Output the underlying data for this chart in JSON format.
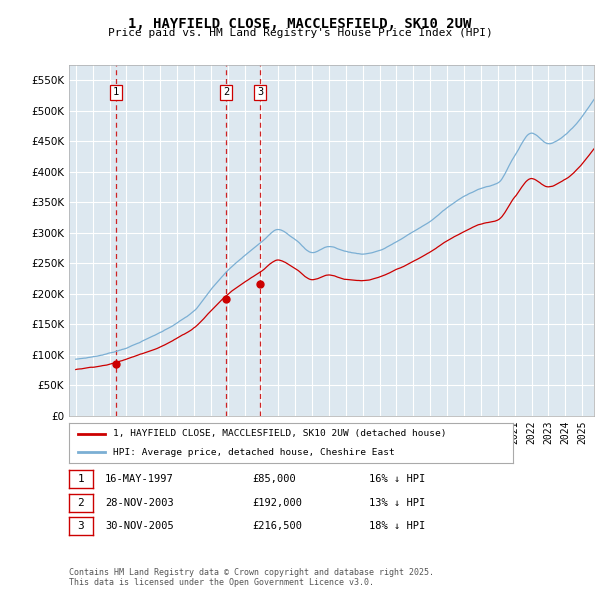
{
  "title": "1, HAYFIELD CLOSE, MACCLESFIELD, SK10 2UW",
  "subtitle": "Price paid vs. HM Land Registry's House Price Index (HPI)",
  "legend_line1": "1, HAYFIELD CLOSE, MACCLESFIELD, SK10 2UW (detached house)",
  "legend_line2": "HPI: Average price, detached house, Cheshire East",
  "footer1": "Contains HM Land Registry data © Crown copyright and database right 2025.",
  "footer2": "This data is licensed under the Open Government Licence v3.0.",
  "sales": [
    {
      "num": 1,
      "date": "16-MAY-1997",
      "price": 85000,
      "hpi_diff": "16% ↓ HPI"
    },
    {
      "num": 2,
      "date": "28-NOV-2003",
      "price": 192000,
      "hpi_diff": "13% ↓ HPI"
    },
    {
      "num": 3,
      "date": "30-NOV-2005",
      "price": 216500,
      "hpi_diff": "18% ↓ HPI"
    }
  ],
  "sale_years": [
    1997.38,
    2003.91,
    2005.92
  ],
  "sale_prices": [
    85000,
    192000,
    216500
  ],
  "vline_color": "#cc0000",
  "dot_color": "#cc0000",
  "hpi_color": "#7bafd4",
  "price_color": "#cc0000",
  "background_color": "#dde8f0",
  "grid_color": "#ffffff",
  "ylim": [
    0,
    575000
  ],
  "yticks": [
    0,
    50000,
    100000,
    150000,
    200000,
    250000,
    300000,
    350000,
    400000,
    450000,
    500000,
    550000
  ],
  "hpi_annual": [
    93000,
    97000,
    103000,
    112000,
    124000,
    137000,
    153000,
    172000,
    206000,
    237000,
    261000,
    283000,
    305000,
    289000,
    267000,
    277000,
    269000,
    265000,
    271000,
    285000,
    301000,
    318000,
    340000,
    358000,
    372000,
    380000,
    425000,
    462000,
    445000,
    460000,
    490000
  ],
  "price_annual": [
    76000,
    80000,
    85000,
    93000,
    103000,
    114000,
    128000,
    145000,
    173000,
    200000,
    220000,
    238000,
    257000,
    243000,
    225000,
    233000,
    226000,
    223000,
    228000,
    240000,
    253000,
    268000,
    286000,
    301000,
    313000,
    320000,
    358000,
    389000,
    375000,
    387000,
    413000
  ],
  "year_start": 1995,
  "year_end": 2025
}
